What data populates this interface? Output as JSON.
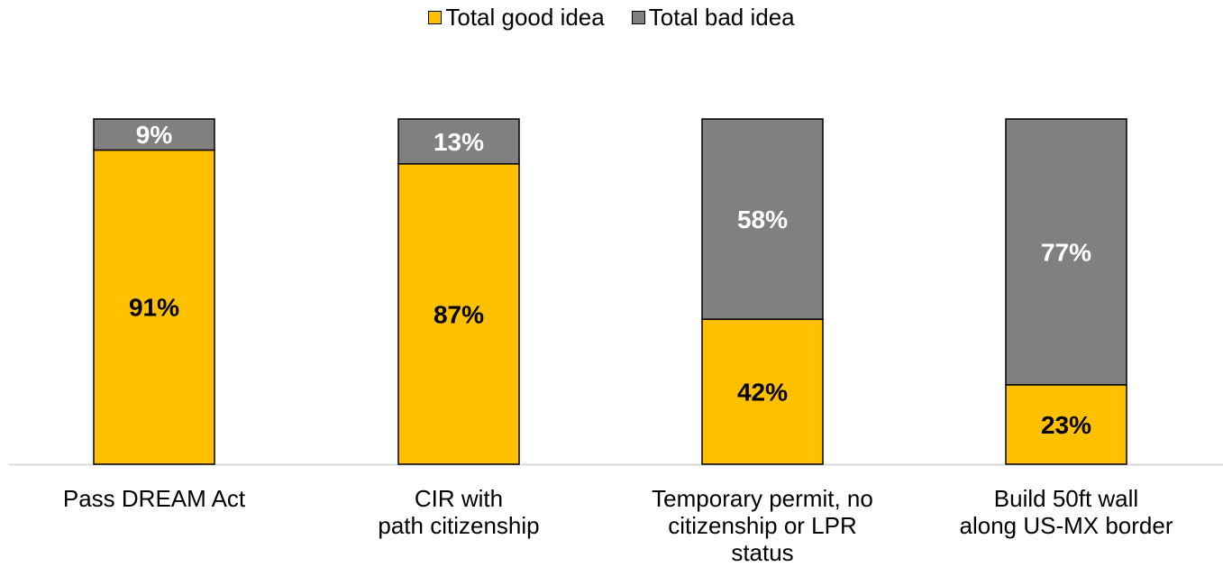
{
  "legend": [
    {
      "label": "Total good idea",
      "color": "#FFC000"
    },
    {
      "label": "Total bad idea",
      "color": "#808080"
    }
  ],
  "chart_data": {
    "type": "bar",
    "stacked": true,
    "categories": [
      "Pass DREAM Act",
      "CIR with\npath citizenship",
      "Temporary permit, no\ncitizenship or LPR\nstatus",
      "Build 50ft wall\nalong US-MX border"
    ],
    "series": [
      {
        "name": "Total good idea",
        "values": [
          91,
          87,
          42,
          23
        ],
        "labels": [
          "91%",
          "87%",
          "42%",
          "23%"
        ],
        "color": "#FFC000",
        "label_color": "#000000"
      },
      {
        "name": "Total bad idea",
        "values": [
          9,
          13,
          58,
          77
        ],
        "labels": [
          "9%",
          "13%",
          "58%",
          "77%"
        ],
        "color": "#808080",
        "label_color": "#FFFFFF"
      }
    ],
    "ylim": [
      0,
      100
    ],
    "grid": false,
    "legend_position": "top"
  }
}
